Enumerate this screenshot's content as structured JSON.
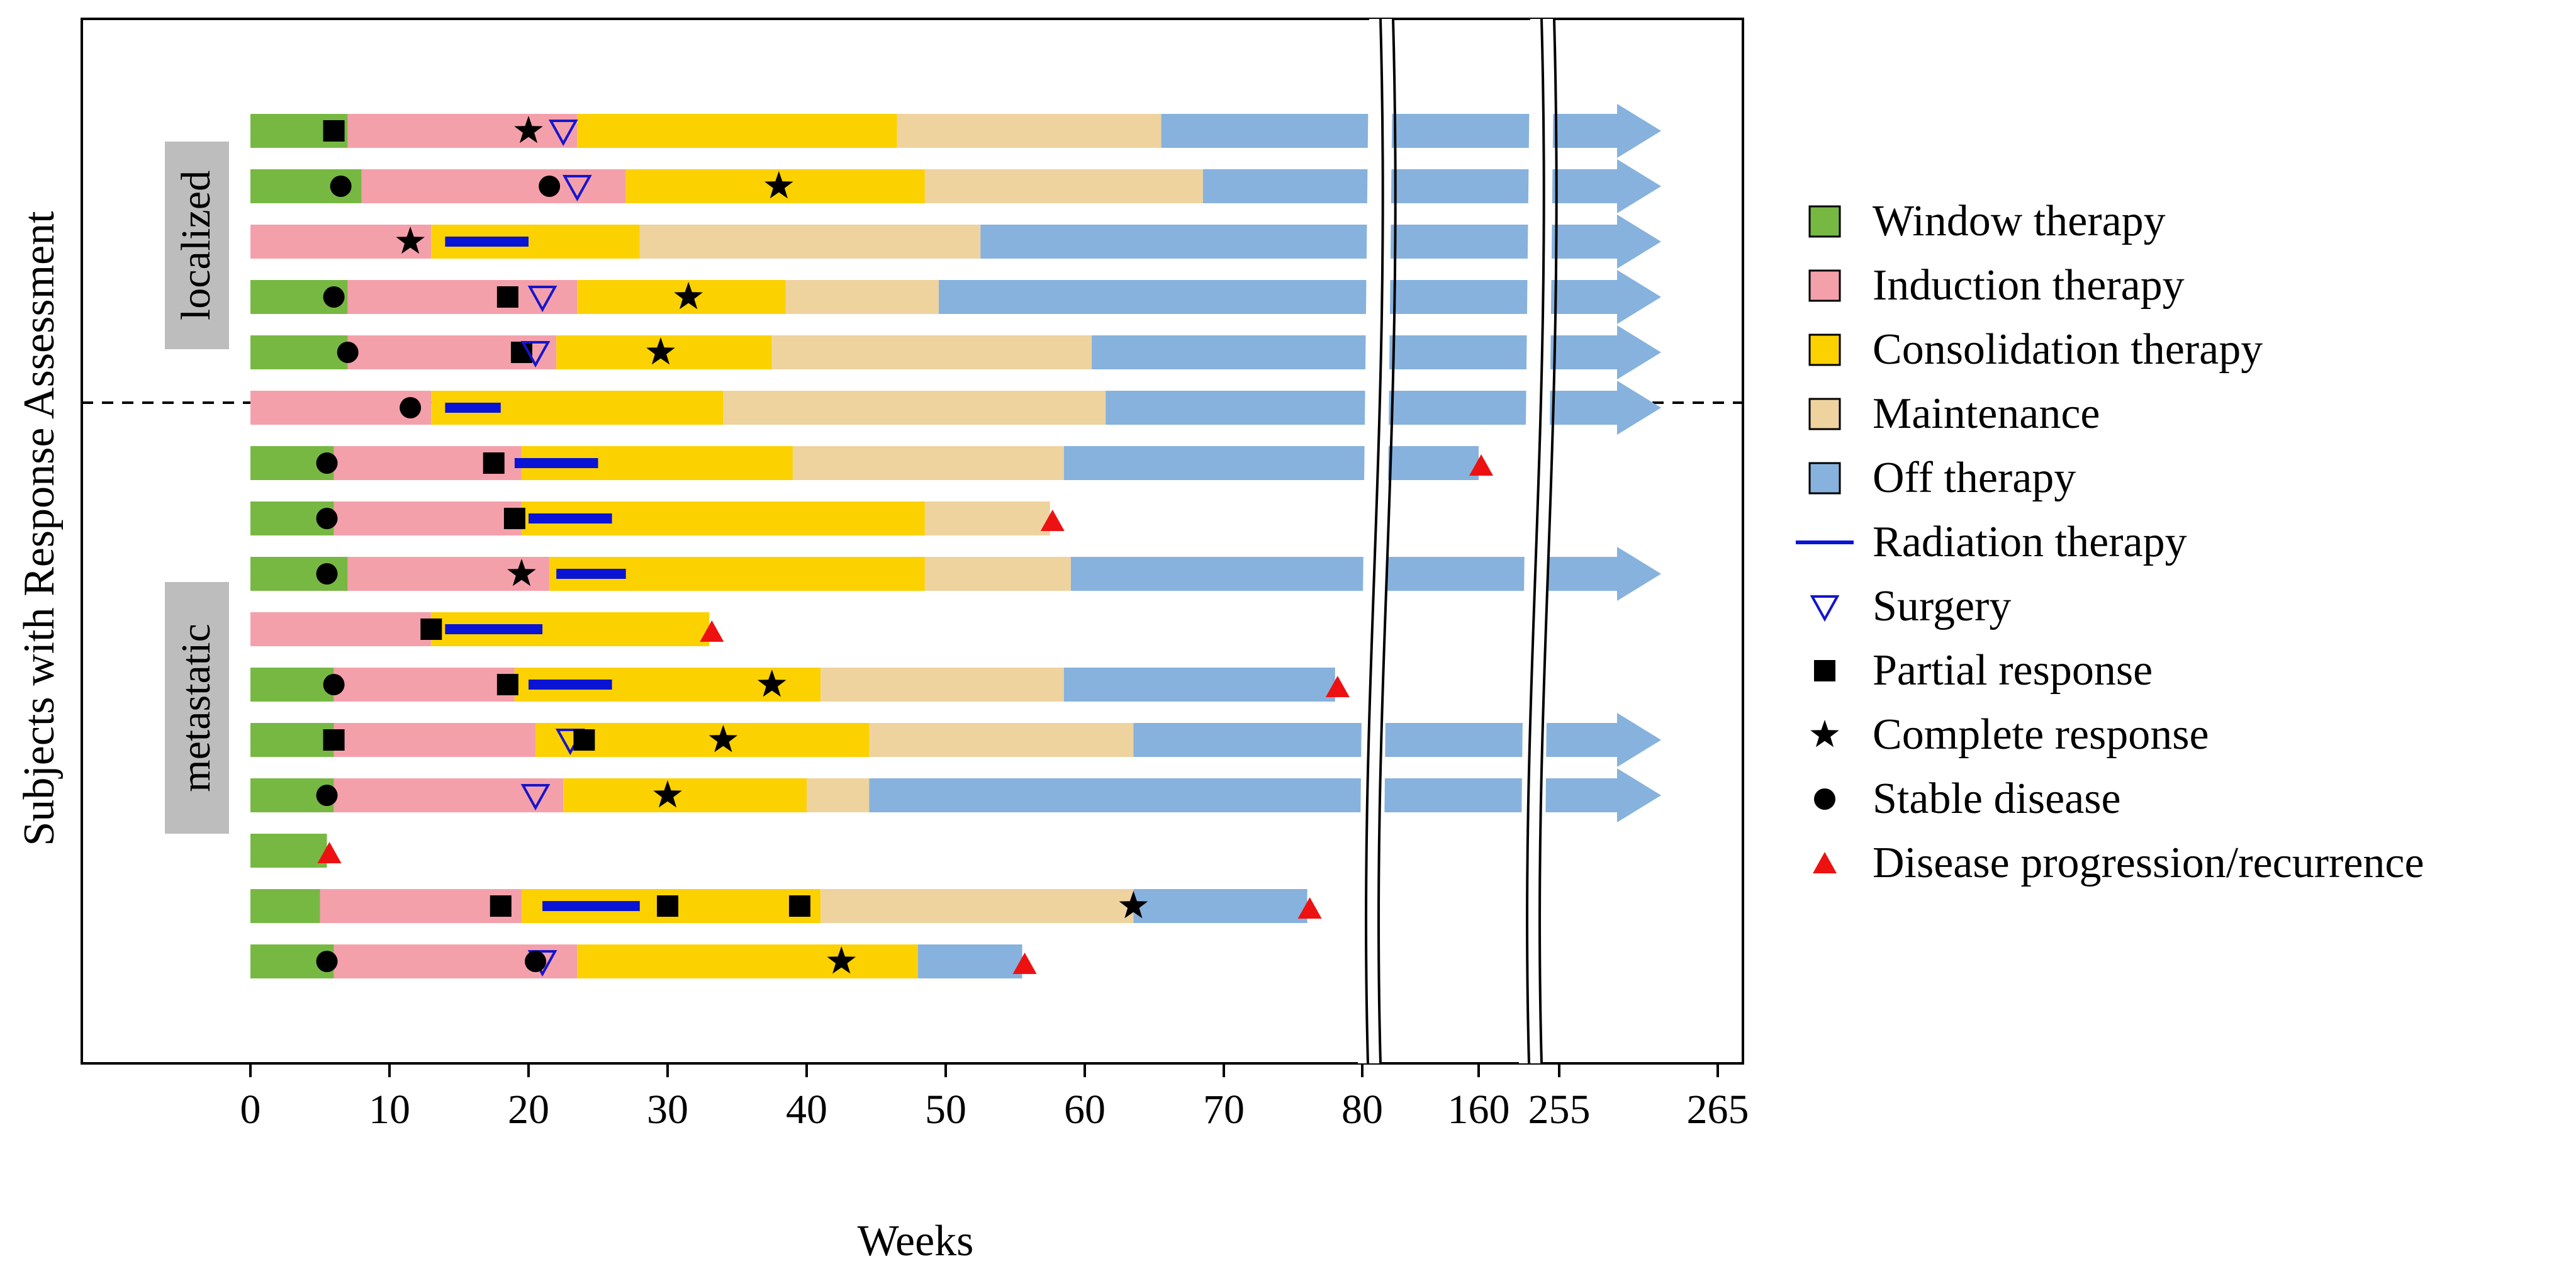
{
  "chart_data": {
    "type": "swimmer",
    "xlabel": "Weeks",
    "ylabel": "Subjects with Response Assessment",
    "x_ticks": [
      "0",
      "10",
      "20",
      "30",
      "40",
      "50",
      "60",
      "70",
      "80",
      "160",
      "255",
      "265"
    ],
    "axis_breaks": [
      "80-160",
      "160-255"
    ],
    "groups": [
      {
        "label": "localized",
        "rows": [
          1,
          2,
          3,
          4,
          5
        ]
      },
      {
        "label": "metastatic",
        "rows": [
          6,
          7,
          8,
          9,
          10,
          11,
          12,
          13,
          14,
          15,
          16
        ]
      }
    ],
    "legend": {
      "window": "Window therapy",
      "induction": "Induction therapy",
      "consolidation": "Consolidation therapy",
      "maintenance": "Maintenance",
      "off": "Off therapy",
      "radiation": "Radiation therapy",
      "surgery": "Surgery",
      "partial": "Partial response",
      "complete": "Complete response",
      "stable": "Stable disease",
      "progression": "Disease progression/recurrence"
    },
    "colors": {
      "window": "#77B843",
      "induction": "#F4A0AB",
      "consolidation": "#FCD100",
      "maintenance": "#EED39F",
      "off": "#86B2DD",
      "radiation": "#0A14D4",
      "surgery": "#1515CC",
      "marker": "#000000",
      "progression": "#EE1111",
      "label_box": "#BDBDBD"
    },
    "rows": [
      {
        "id": 1,
        "segments": [
          [
            "window",
            0,
            7
          ],
          [
            "induction",
            7,
            23.5
          ],
          [
            "consolidation",
            23.5,
            46.5
          ],
          [
            "maintenance",
            46.5,
            65.5
          ],
          [
            "off",
            65.5,
            "arrow"
          ]
        ],
        "radiation": [],
        "markers": [
          [
            "partial",
            6
          ],
          [
            "complete",
            20
          ],
          [
            "surgery",
            22.5
          ]
        ]
      },
      {
        "id": 2,
        "segments": [
          [
            "window",
            0,
            8
          ],
          [
            "induction",
            8,
            27
          ],
          [
            "consolidation",
            27,
            48.5
          ],
          [
            "maintenance",
            48.5,
            68.5
          ],
          [
            "off",
            68.5,
            "arrow"
          ]
        ],
        "radiation": [],
        "markers": [
          [
            "stable",
            6.5
          ],
          [
            "stable",
            21.5
          ],
          [
            "surgery",
            23.5
          ],
          [
            "complete",
            38
          ]
        ]
      },
      {
        "id": 3,
        "segments": [
          [
            "induction",
            0,
            13
          ],
          [
            "consolidation",
            13,
            28
          ],
          [
            "maintenance",
            28,
            52.5
          ],
          [
            "off",
            52.5,
            "arrow"
          ]
        ],
        "radiation": [
          [
            14,
            20
          ]
        ],
        "markers": [
          [
            "complete",
            11.5
          ]
        ]
      },
      {
        "id": 4,
        "segments": [
          [
            "window",
            0,
            7
          ],
          [
            "induction",
            7,
            23.5
          ],
          [
            "consolidation",
            23.5,
            38.5
          ],
          [
            "maintenance",
            38.5,
            49.5
          ],
          [
            "off",
            49.5,
            "arrow"
          ]
        ],
        "radiation": [],
        "markers": [
          [
            "stable",
            6
          ],
          [
            "partial",
            18.5
          ],
          [
            "surgery",
            21
          ],
          [
            "complete",
            31.5
          ]
        ]
      },
      {
        "id": 5,
        "segments": [
          [
            "window",
            0,
            7
          ],
          [
            "induction",
            7,
            22
          ],
          [
            "consolidation",
            22,
            37.5
          ],
          [
            "maintenance",
            37.5,
            60.5
          ],
          [
            "off",
            60.5,
            "arrow"
          ]
        ],
        "radiation": [],
        "markers": [
          [
            "stable",
            7
          ],
          [
            "partial",
            19.5
          ],
          [
            "surgery",
            20.5
          ],
          [
            "complete",
            29.5
          ]
        ]
      },
      {
        "id": 6,
        "segments": [
          [
            "induction",
            0,
            13
          ],
          [
            "consolidation",
            13,
            34
          ],
          [
            "maintenance",
            34,
            61.5
          ],
          [
            "off",
            61.5,
            "arrow"
          ]
        ],
        "radiation": [
          [
            14,
            18
          ]
        ],
        "markers": [
          [
            "stable",
            11.5
          ]
        ]
      },
      {
        "id": 7,
        "segments": [
          [
            "window",
            0,
            6
          ],
          [
            "induction",
            6,
            19.5
          ],
          [
            "consolidation",
            19.5,
            39
          ],
          [
            "maintenance",
            39,
            58.5
          ],
          [
            "off",
            58.5,
            160
          ]
        ],
        "radiation": [
          [
            19,
            25
          ]
        ],
        "markers": [
          [
            "stable",
            5.5
          ],
          [
            "partial",
            17.5
          ],
          [
            "progression",
            160
          ]
        ]
      },
      {
        "id": 8,
        "segments": [
          [
            "window",
            0,
            6
          ],
          [
            "induction",
            6,
            19.5
          ],
          [
            "consolidation",
            19.5,
            48.5
          ],
          [
            "maintenance",
            48.5,
            57.5
          ]
        ],
        "radiation": [
          [
            20,
            26
          ]
        ],
        "markers": [
          [
            "stable",
            5.5
          ],
          [
            "partial",
            19
          ],
          [
            "progression",
            57.5
          ]
        ]
      },
      {
        "id": 9,
        "segments": [
          [
            "window",
            0,
            7
          ],
          [
            "induction",
            7,
            21.5
          ],
          [
            "consolidation",
            21.5,
            48.5
          ],
          [
            "maintenance",
            48.5,
            59
          ],
          [
            "off",
            59,
            "arrow"
          ]
        ],
        "radiation": [
          [
            22,
            27
          ]
        ],
        "markers": [
          [
            "stable",
            5.5
          ],
          [
            "complete",
            19.5
          ]
        ]
      },
      {
        "id": 10,
        "segments": [
          [
            "induction",
            0,
            13
          ],
          [
            "consolidation",
            13,
            33
          ]
        ],
        "radiation": [
          [
            14,
            21
          ]
        ],
        "markers": [
          [
            "partial",
            13
          ],
          [
            "progression",
            33
          ]
        ]
      },
      {
        "id": 11,
        "segments": [
          [
            "window",
            0,
            6
          ],
          [
            "induction",
            6,
            19
          ],
          [
            "consolidation",
            19,
            41
          ],
          [
            "maintenance",
            41,
            58.5
          ],
          [
            "off",
            58.5,
            78
          ]
        ],
        "radiation": [
          [
            20,
            26
          ]
        ],
        "markers": [
          [
            "stable",
            6
          ],
          [
            "partial",
            18.5
          ],
          [
            "complete",
            37.5
          ],
          [
            "progression",
            78
          ]
        ]
      },
      {
        "id": 12,
        "segments": [
          [
            "window",
            0,
            6
          ],
          [
            "induction",
            6,
            20.5
          ],
          [
            "consolidation",
            20.5,
            44.5
          ],
          [
            "maintenance",
            44.5,
            63.5
          ],
          [
            "off",
            63.5,
            "arrow"
          ]
        ],
        "radiation": [],
        "markers": [
          [
            "partial",
            6
          ],
          [
            "surgery",
            23
          ],
          [
            "partial",
            24
          ],
          [
            "complete",
            34
          ]
        ]
      },
      {
        "id": 13,
        "segments": [
          [
            "window",
            0,
            6
          ],
          [
            "induction",
            6,
            22.5
          ],
          [
            "consolidation",
            22.5,
            40
          ],
          [
            "maintenance",
            40,
            44.5
          ],
          [
            "off",
            44.5,
            "arrow"
          ]
        ],
        "radiation": [],
        "markers": [
          [
            "stable",
            5.5
          ],
          [
            "surgery",
            20.5
          ],
          [
            "complete",
            30
          ]
        ]
      },
      {
        "id": 14,
        "segments": [
          [
            "window",
            0,
            5.5
          ]
        ],
        "radiation": [],
        "markers": [
          [
            "progression",
            5.5
          ]
        ]
      },
      {
        "id": 15,
        "segments": [
          [
            "window",
            0,
            5
          ],
          [
            "induction",
            5,
            19.5
          ],
          [
            "consolidation",
            19.5,
            41
          ],
          [
            "maintenance",
            41,
            63.5
          ],
          [
            "off",
            63.5,
            76
          ]
        ],
        "radiation": [
          [
            21,
            28
          ]
        ],
        "markers": [
          [
            "partial",
            18
          ],
          [
            "partial",
            30
          ],
          [
            "partial",
            39.5
          ],
          [
            "complete",
            63.5
          ],
          [
            "progression",
            76
          ]
        ]
      },
      {
        "id": 16,
        "segments": [
          [
            "window",
            0,
            6
          ],
          [
            "induction",
            6,
            23.5
          ],
          [
            "consolidation",
            23.5,
            48
          ],
          [
            "off",
            48,
            55.5
          ]
        ],
        "radiation": [],
        "markers": [
          [
            "stable",
            5.5
          ],
          [
            "surgery",
            21
          ],
          [
            "stable",
            20.5
          ],
          [
            "complete",
            42.5
          ],
          [
            "progression",
            55.5
          ]
        ]
      }
    ]
  }
}
